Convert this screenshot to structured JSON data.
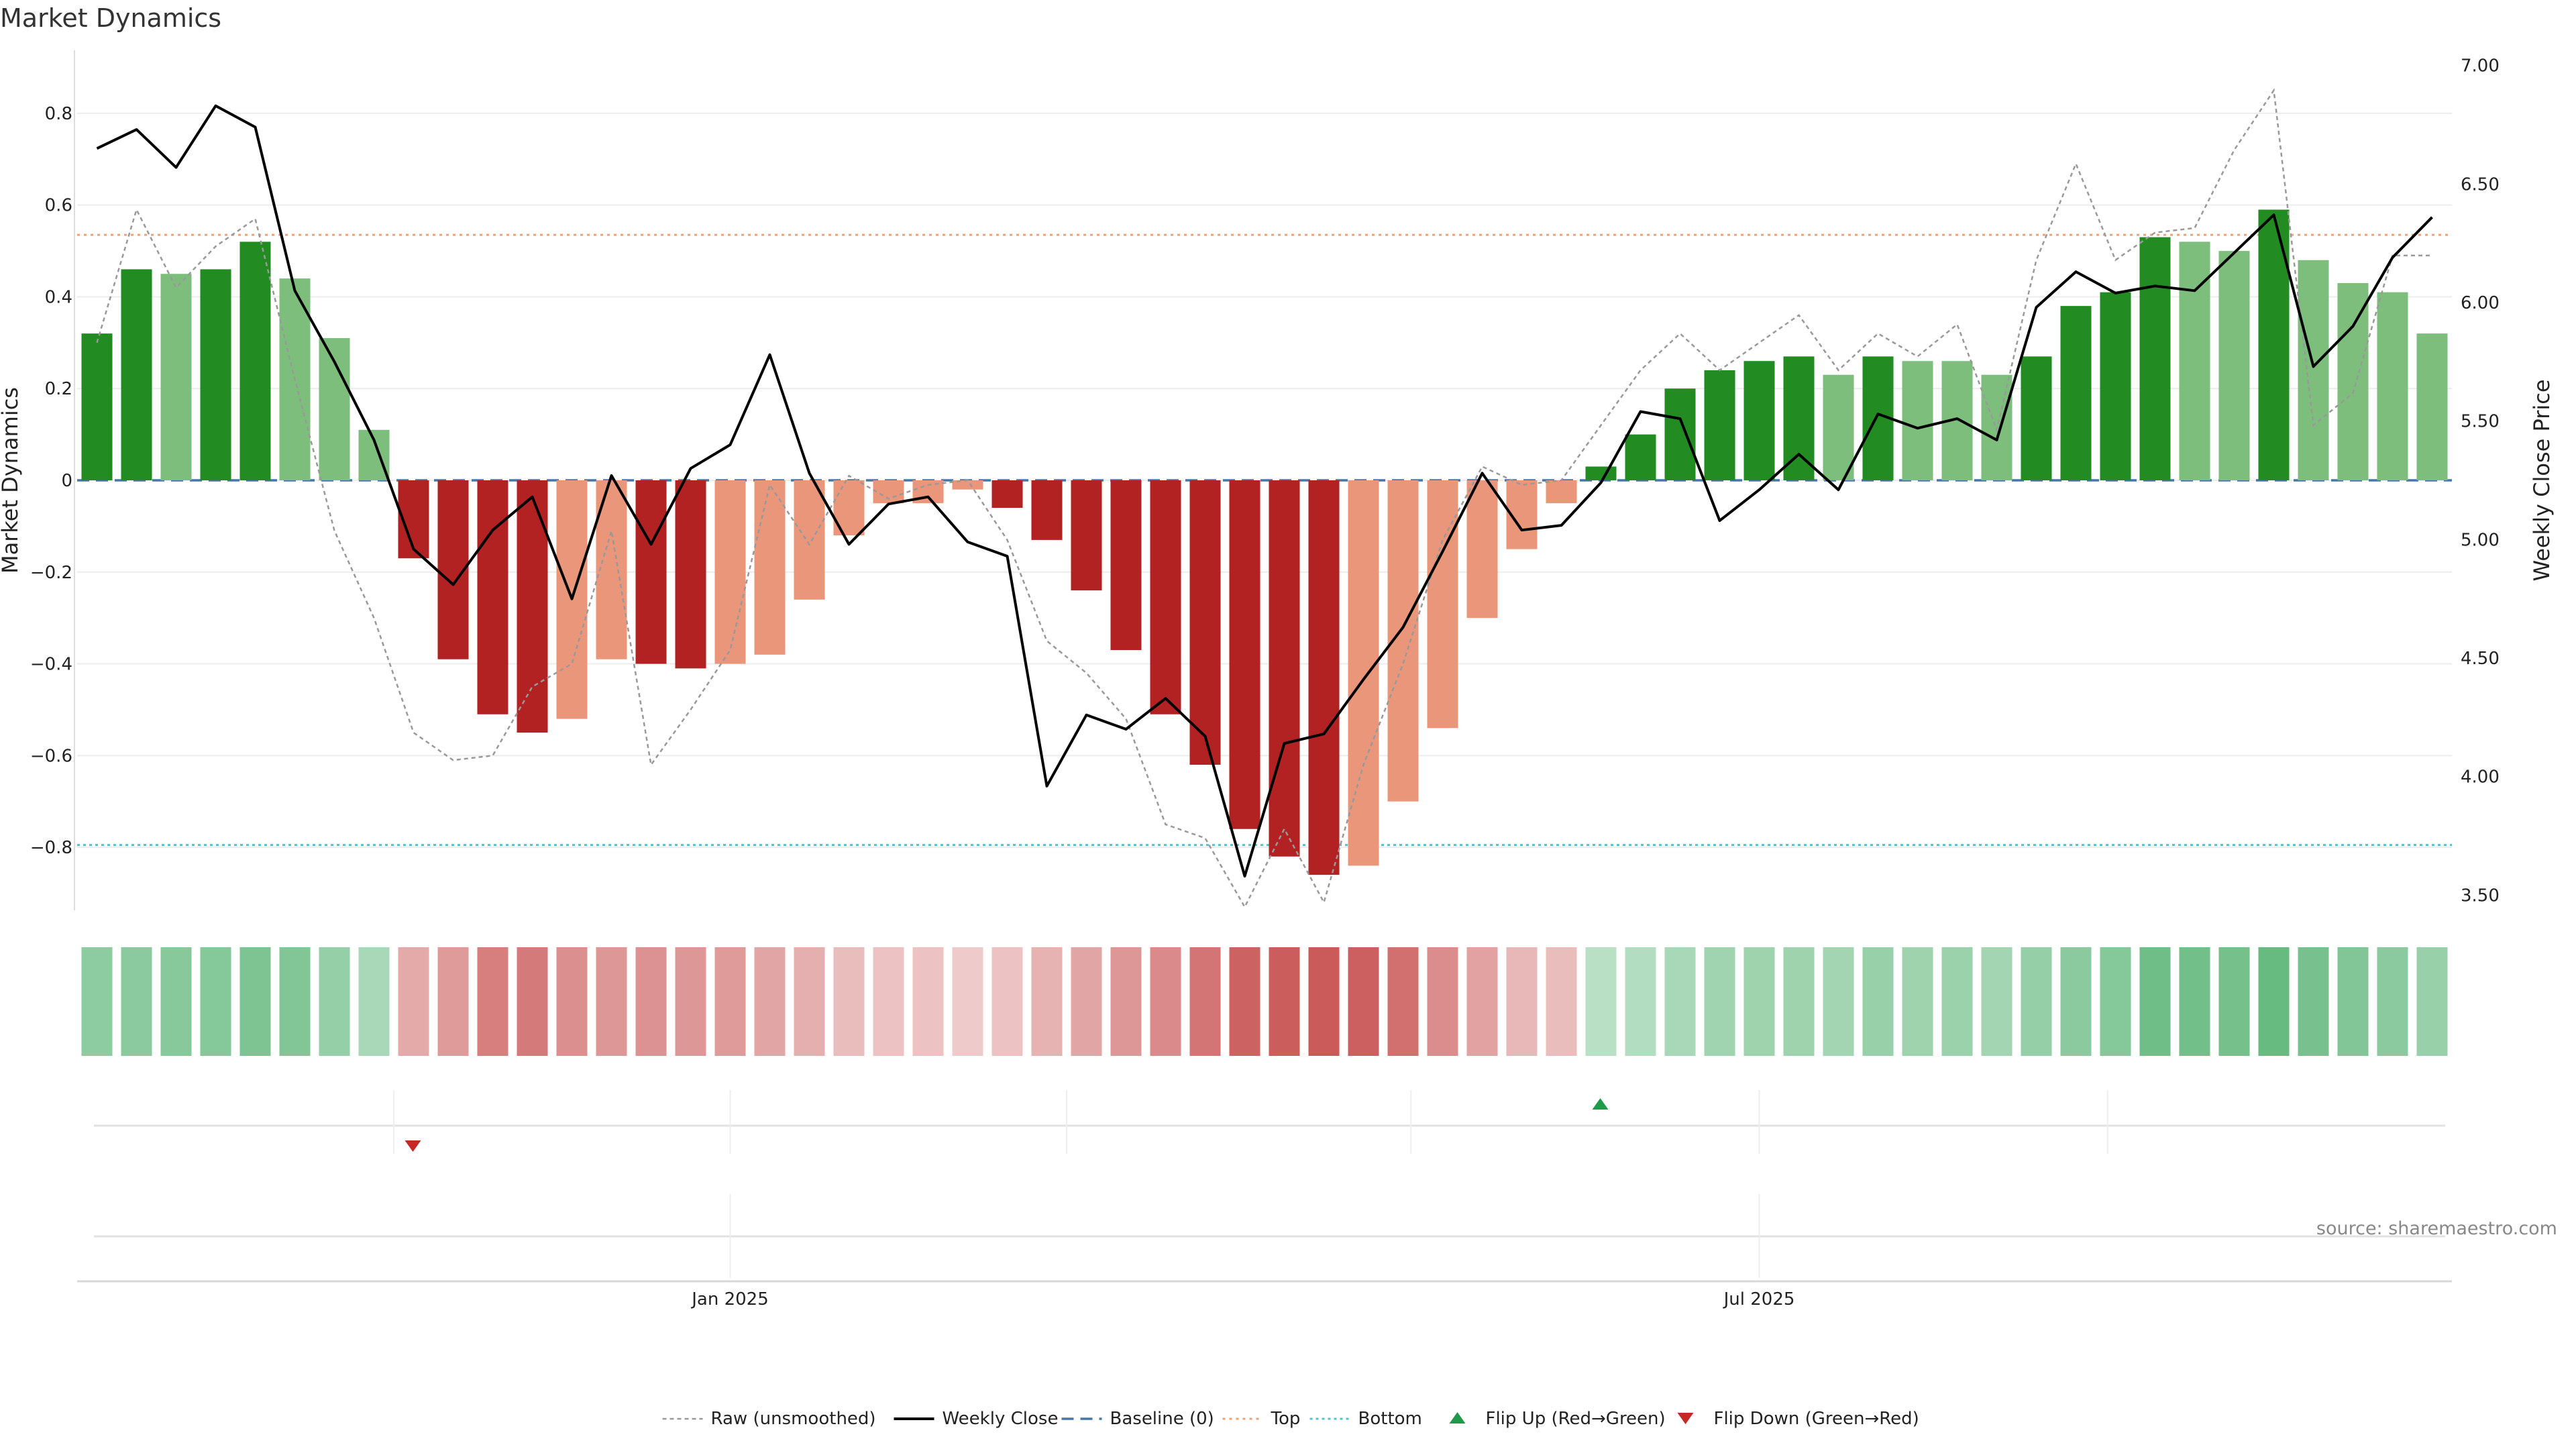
{
  "title": "Market Dynamics",
  "source": "source: sharemaestro.com",
  "colors": {
    "strong_green": "#228B22",
    "weak_green": "#7DBE7D",
    "strong_red": "#B22222",
    "weak_red": "#E9967A",
    "weekly_close": "#000000",
    "raw": "#999999",
    "baseline": "#4477AA",
    "top": "#E9A27A",
    "bottom": "#55C0D0",
    "flip_up": "#1E9A4A",
    "flip_down": "#C62828"
  },
  "chart_data": {
    "type": "bar",
    "title": "Market Dynamics",
    "ylabel": "Market Dynamics",
    "y2label": "Weekly Close Price",
    "ylim": [
      -0.93,
      0.93
    ],
    "y2lim": [
      3.45,
      7.05
    ],
    "yticks": [
      "0.8",
      "0.6",
      "0.4",
      "0.2",
      "0",
      "−0.2",
      "−0.4",
      "−0.6",
      "−0.8"
    ],
    "ytick_values": [
      0.8,
      0.6,
      0.4,
      0.2,
      0,
      -0.2,
      -0.4,
      -0.6,
      -0.8
    ],
    "y2ticks": [
      "7.00",
      "6.50",
      "6.00",
      "5.50",
      "5.00",
      "4.50",
      "4.00",
      "3.50"
    ],
    "y2tick_values": [
      7.0,
      6.5,
      6.0,
      5.5,
      5.0,
      4.5,
      4.0,
      3.5
    ],
    "xticks": [
      {
        "label": "Jan 2025",
        "index": 16.5
      },
      {
        "label": "Jul 2025",
        "index": 42.5
      }
    ],
    "x_gridlines": [
      8,
      16.5,
      25,
      33.7,
      42.5,
      51.3
    ],
    "top_level": 0.535,
    "bottom_level": -0.795,
    "bars": [
      0.32,
      0.46,
      0.45,
      0.46,
      0.52,
      0.44,
      0.31,
      0.11,
      -0.17,
      -0.39,
      -0.51,
      -0.55,
      -0.52,
      -0.39,
      -0.4,
      -0.41,
      -0.4,
      -0.38,
      -0.26,
      -0.12,
      -0.05,
      -0.05,
      -0.02,
      -0.06,
      -0.13,
      -0.24,
      -0.37,
      -0.51,
      -0.62,
      -0.76,
      -0.82,
      -0.86,
      -0.84,
      -0.7,
      -0.54,
      -0.3,
      -0.15,
      -0.05,
      0.03,
      0.1,
      0.2,
      0.24,
      0.26,
      0.27,
      0.23,
      0.27,
      0.26,
      0.26,
      0.23,
      0.27,
      0.38,
      0.41,
      0.53,
      0.52,
      0.5,
      0.59,
      0.48,
      0.43,
      0.41,
      0.32
    ],
    "bar_strength": [
      "strong",
      "strong",
      "weak",
      "strong",
      "strong",
      "weak",
      "weak",
      "weak",
      "strong",
      "strong",
      "strong",
      "strong",
      "weak",
      "weak",
      "strong",
      "strong",
      "weak",
      "weak",
      "weak",
      "weak",
      "weak",
      "weak",
      "weak",
      "strong",
      "strong",
      "strong",
      "strong",
      "strong",
      "strong",
      "strong",
      "strong",
      "strong",
      "weak",
      "weak",
      "weak",
      "weak",
      "weak",
      "weak",
      "strong",
      "strong",
      "strong",
      "strong",
      "strong",
      "strong",
      "weak",
      "strong",
      "weak",
      "weak",
      "weak",
      "strong",
      "strong",
      "strong",
      "strong",
      "weak",
      "weak",
      "strong",
      "weak",
      "weak",
      "weak",
      "weak"
    ],
    "raw_values": [
      0.3,
      0.59,
      0.42,
      0.51,
      0.57,
      0.22,
      -0.11,
      -0.3,
      -0.55,
      -0.61,
      -0.6,
      -0.45,
      -0.4,
      -0.11,
      -0.62,
      -0.5,
      -0.37,
      -0.01,
      -0.14,
      0.01,
      -0.04,
      -0.01,
      0.0,
      -0.13,
      -0.35,
      -0.42,
      -0.52,
      -0.75,
      -0.78,
      -0.93,
      -0.76,
      -0.92,
      -0.62,
      -0.4,
      -0.13,
      0.03,
      -0.01,
      0.0,
      0.12,
      0.24,
      0.32,
      0.24,
      0.3,
      0.36,
      0.24,
      0.32,
      0.27,
      0.34,
      0.11,
      0.48,
      0.69,
      0.48,
      0.54,
      0.55,
      0.72,
      0.85,
      0.12,
      0.19,
      0.49,
      0.49
    ],
    "weekly_close": [
      6.65,
      6.73,
      6.57,
      6.83,
      6.74,
      6.05,
      5.75,
      5.42,
      4.96,
      4.81,
      5.04,
      5.18,
      4.75,
      5.27,
      4.98,
      5.3,
      5.4,
      5.78,
      5.28,
      4.98,
      5.15,
      5.18,
      4.99,
      4.93,
      3.96,
      4.26,
      4.2,
      4.33,
      4.17,
      3.58,
      4.14,
      4.18,
      4.41,
      4.63,
      4.95,
      5.28,
      5.04,
      5.06,
      5.24,
      5.54,
      5.51,
      5.08,
      5.21,
      5.36,
      5.21,
      5.53,
      5.47,
      5.51,
      5.42,
      5.98,
      6.13,
      6.04,
      6.07,
      6.05,
      6.21,
      6.37,
      5.73,
      5.9,
      6.19,
      6.36
    ],
    "heat_strip": [
      0.56,
      0.58,
      0.6,
      0.62,
      0.68,
      0.64,
      0.5,
      0.36,
      -0.36,
      -0.48,
      -0.68,
      -0.72,
      -0.56,
      -0.5,
      -0.54,
      -0.5,
      -0.48,
      -0.4,
      -0.32,
      -0.22,
      -0.18,
      -0.18,
      -0.12,
      -0.18,
      -0.3,
      -0.4,
      -0.5,
      -0.6,
      -0.76,
      -0.9,
      -0.94,
      -0.96,
      -0.92,
      -0.8,
      -0.58,
      -0.42,
      -0.26,
      -0.22,
      0.24,
      0.28,
      0.36,
      0.42,
      0.44,
      0.44,
      0.4,
      0.48,
      0.44,
      0.46,
      0.4,
      0.5,
      0.58,
      0.62,
      0.78,
      0.76,
      0.74,
      0.84,
      0.72,
      0.64,
      0.58,
      0.48
    ],
    "flips": [
      {
        "type": "down",
        "index": 8
      },
      {
        "type": "up",
        "index": 38
      }
    ],
    "legend_position": "bottom",
    "legend": [
      {
        "label": "Raw (unsmoothed)",
        "kind": "raw"
      },
      {
        "label": "Weekly Close",
        "kind": "close"
      },
      {
        "label": "Baseline (0)",
        "kind": "baseline"
      },
      {
        "label": "Top",
        "kind": "top"
      },
      {
        "label": "Bottom",
        "kind": "bottom"
      },
      {
        "label": "Flip Up (Red→Green)",
        "kind": "flipup"
      },
      {
        "label": "Flip Down (Green→Red)",
        "kind": "flipdown"
      }
    ]
  }
}
